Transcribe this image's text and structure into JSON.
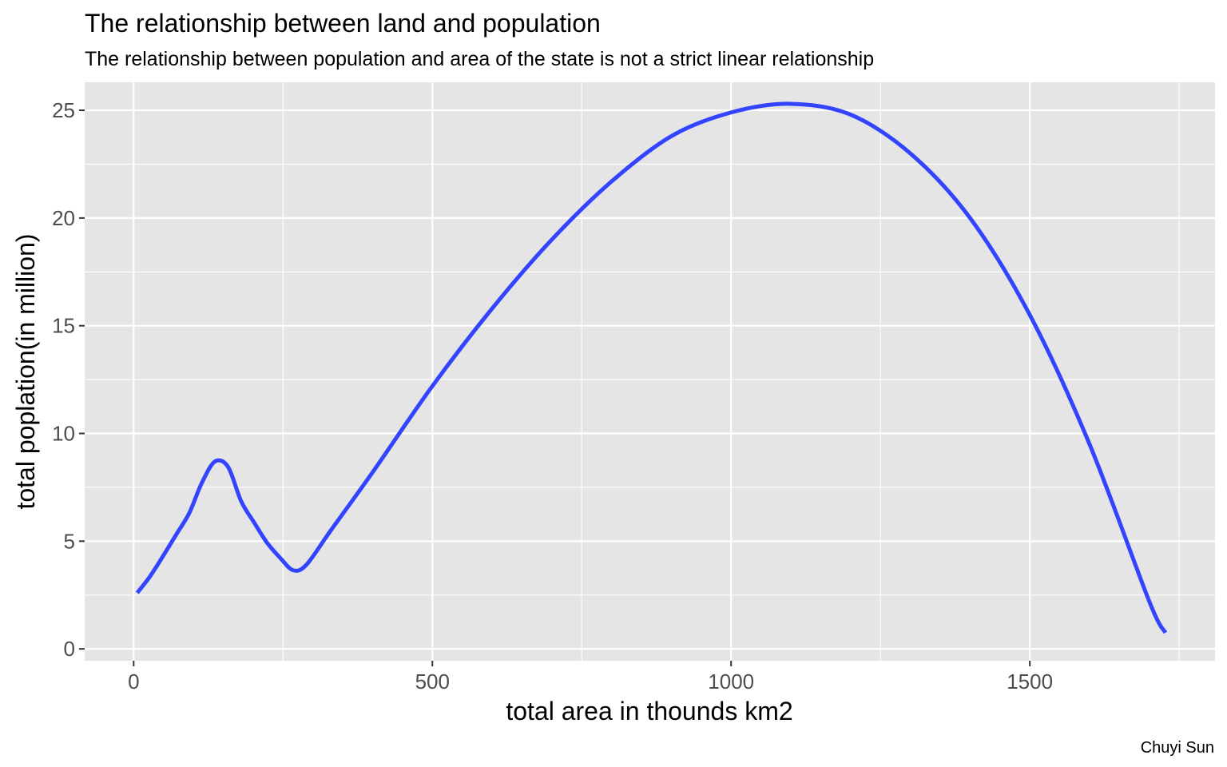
{
  "chart_data": {
    "type": "line",
    "title": "The relationship between land and population",
    "subtitle": "The relationship between population and area of the state is not a strict linear relationship",
    "xlabel": "total area in thounds km2",
    "ylabel": "total poplation(in million)",
    "caption": "Chuyi Sun",
    "xlim": [
      -82,
      1810
    ],
    "ylim": [
      -0.55,
      26.3
    ],
    "x_ticks": [
      0,
      500,
      1000,
      1500
    ],
    "x_tick_labels": [
      "0",
      "500",
      "1000",
      "1500"
    ],
    "y_ticks": [
      0,
      5,
      10,
      15,
      20,
      25
    ],
    "y_tick_labels": [
      "0",
      "5",
      "10",
      "15",
      "20",
      "25"
    ],
    "grid": true,
    "line_color": "#3344ff",
    "panel_background": "#e5e5e5",
    "series": [
      {
        "x": [
          6,
          27,
          49,
          71,
          93,
          114,
          136,
          158,
          180,
          202,
          224,
          246,
          267,
          289,
          330,
          400,
          500,
          600,
          700,
          800,
          900,
          1000,
          1100,
          1200,
          1300,
          1400,
          1500,
          1600,
          1700,
          1727
        ],
        "y": [
          2.6,
          3.35,
          4.3,
          5.3,
          6.3,
          7.7,
          8.7,
          8.45,
          6.85,
          5.85,
          4.9,
          4.2,
          3.65,
          3.9,
          5.5,
          8.2,
          12.2,
          15.8,
          19.0,
          21.7,
          23.8,
          24.9,
          25.3,
          24.8,
          23.0,
          20.0,
          15.5,
          9.5,
          2.2,
          0.75
        ]
      }
    ]
  }
}
